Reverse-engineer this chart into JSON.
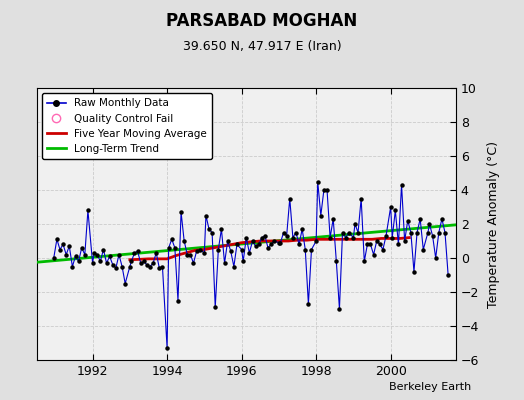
{
  "title": "PARSABAD MOGHAN",
  "subtitle": "39.650 N, 47.917 E (Iran)",
  "ylabel": "Temperature Anomaly (°C)",
  "credit": "Berkeley Earth",
  "ylim": [
    -6,
    10
  ],
  "yticks": [
    -6,
    -4,
    -2,
    0,
    2,
    4,
    6,
    8,
    10
  ],
  "xlim": [
    1990.5,
    2001.75
  ],
  "xticks": [
    1992,
    1994,
    1996,
    1998,
    2000
  ],
  "bg_color": "#e0e0e0",
  "plot_bg_color": "#f0f0f0",
  "raw_color": "#0000cc",
  "ma_color": "#cc0000",
  "trend_color": "#00bb00",
  "raw_monthly_x": [
    1990.958,
    1991.042,
    1991.125,
    1991.208,
    1991.292,
    1991.375,
    1991.458,
    1991.542,
    1991.625,
    1991.708,
    1991.792,
    1991.875,
    1992.0,
    1992.042,
    1992.125,
    1992.208,
    1992.292,
    1992.375,
    1992.458,
    1992.542,
    1992.625,
    1992.708,
    1992.792,
    1992.875,
    1993.0,
    1993.042,
    1993.125,
    1993.208,
    1993.292,
    1993.375,
    1993.458,
    1993.542,
    1993.625,
    1993.708,
    1993.792,
    1993.875,
    1994.0,
    1994.042,
    1994.125,
    1994.208,
    1994.292,
    1994.375,
    1994.458,
    1994.542,
    1994.625,
    1994.708,
    1994.792,
    1994.875,
    1995.0,
    1995.042,
    1995.125,
    1995.208,
    1995.292,
    1995.375,
    1995.458,
    1995.542,
    1995.625,
    1995.708,
    1995.792,
    1995.875,
    1996.0,
    1996.042,
    1996.125,
    1996.208,
    1996.292,
    1996.375,
    1996.458,
    1996.542,
    1996.625,
    1996.708,
    1996.792,
    1996.875,
    1997.0,
    1997.042,
    1997.125,
    1997.208,
    1997.292,
    1997.375,
    1997.458,
    1997.542,
    1997.625,
    1997.708,
    1997.792,
    1997.875,
    1998.0,
    1998.042,
    1998.125,
    1998.208,
    1998.292,
    1998.375,
    1998.458,
    1998.542,
    1998.625,
    1998.708,
    1998.792,
    1998.875,
    1999.0,
    1999.042,
    1999.125,
    1999.208,
    1999.292,
    1999.375,
    1999.458,
    1999.542,
    1999.625,
    1999.708,
    1999.792,
    1999.875,
    2000.0,
    2000.042,
    2000.125,
    2000.208,
    2000.292,
    2000.375,
    2000.458,
    2000.542,
    2000.625,
    2000.708,
    2000.792,
    2000.875,
    2001.0,
    2001.042,
    2001.125,
    2001.208,
    2001.292,
    2001.375,
    2001.458,
    2001.542
  ],
  "raw_monthly_y": [
    0.0,
    1.1,
    0.5,
    0.8,
    0.2,
    0.7,
    -0.5,
    0.1,
    -0.2,
    0.6,
    0.2,
    2.8,
    -0.3,
    0.3,
    0.2,
    -0.2,
    0.5,
    -0.3,
    0.1,
    -0.4,
    -0.6,
    0.2,
    -0.5,
    -1.5,
    -0.5,
    -0.2,
    0.3,
    0.4,
    -0.3,
    -0.2,
    -0.4,
    -0.5,
    -0.3,
    0.3,
    -0.6,
    -0.5,
    -5.3,
    0.6,
    1.1,
    0.6,
    -2.5,
    2.7,
    1.0,
    0.2,
    0.2,
    -0.3,
    0.4,
    0.5,
    0.3,
    2.5,
    1.7,
    1.5,
    -2.9,
    0.5,
    1.7,
    -0.3,
    1.0,
    0.4,
    -0.5,
    0.8,
    0.5,
    -0.2,
    1.2,
    0.3,
    1.0,
    0.7,
    0.8,
    1.2,
    1.3,
    0.6,
    0.8,
    1.0,
    0.9,
    0.9,
    1.5,
    1.3,
    3.5,
    1.2,
    1.5,
    0.8,
    1.7,
    0.5,
    -2.7,
    0.5,
    1.0,
    4.5,
    2.5,
    4.0,
    4.0,
    1.2,
    2.3,
    -0.2,
    -3.0,
    1.5,
    1.2,
    1.5,
    1.2,
    2.0,
    1.5,
    3.5,
    -0.2,
    0.8,
    0.8,
    0.2,
    1.0,
    0.8,
    0.5,
    1.3,
    3.0,
    1.2,
    2.8,
    0.8,
    4.3,
    1.0,
    2.2,
    1.5,
    -0.8,
    1.5,
    2.3,
    0.5,
    1.5,
    2.0,
    1.3,
    0.0,
    1.5,
    2.3,
    1.5,
    -1.0
  ],
  "ma_x": [
    1993.0,
    1993.25,
    1993.5,
    1993.75,
    1994.0,
    1994.25,
    1994.5,
    1994.75,
    1995.0,
    1995.25,
    1995.5,
    1995.75,
    1996.0,
    1996.25,
    1996.5,
    1996.75,
    1997.0,
    1997.25,
    1997.5,
    1997.75,
    1998.0,
    1998.25,
    1998.5,
    1998.75,
    1999.0,
    1999.25,
    1999.5,
    1999.75,
    2000.0,
    2000.25,
    2000.5
  ],
  "ma_y": [
    -0.1,
    -0.08,
    -0.05,
    -0.05,
    -0.05,
    0.15,
    0.3,
    0.45,
    0.5,
    0.6,
    0.7,
    0.8,
    0.9,
    0.95,
    1.0,
    1.0,
    1.0,
    1.0,
    1.05,
    1.05,
    1.1,
    1.1,
    1.1,
    1.1,
    1.1,
    1.1,
    1.1,
    1.15,
    1.15,
    1.15,
    1.2
  ],
  "trend_x": [
    1990.5,
    2001.75
  ],
  "trend_y": [
    -0.25,
    1.95
  ]
}
